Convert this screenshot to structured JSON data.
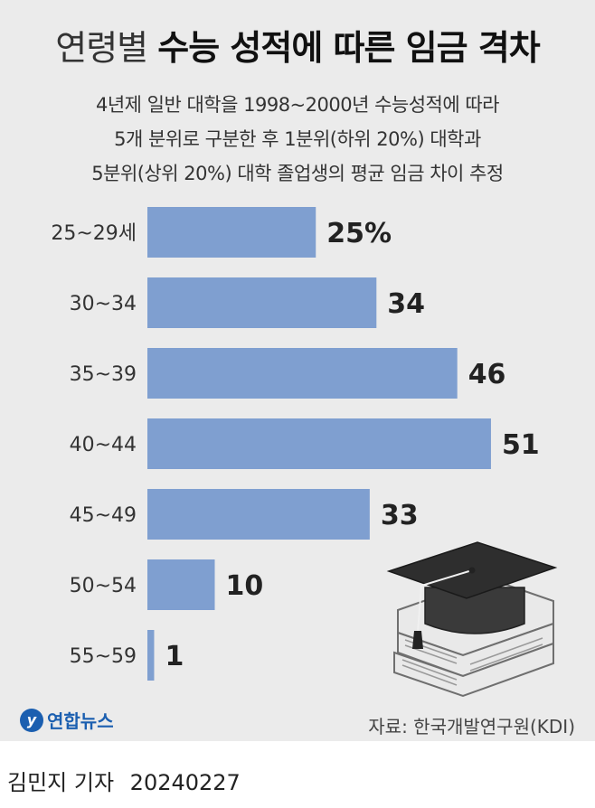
{
  "title": {
    "light": "연령별",
    "bold": "수능 성적에 따른 임금 격차"
  },
  "subtitle": [
    "4년제 일반 대학을 1998~2000년 수능성적에 따라",
    "5개 분위로 구분한 후 1분위(하위 20%) 대학과",
    "5분위(상위 20%) 대학 졸업생의 평균 임금 차이 추정"
  ],
  "chart_data": {
    "type": "bar",
    "orientation": "horizontal",
    "categories": [
      "25~29세",
      "30~34",
      "35~39",
      "40~44",
      "45~49",
      "50~54",
      "55~59"
    ],
    "values": [
      25,
      34,
      46,
      51,
      33,
      10,
      1
    ],
    "value_labels": [
      "25%",
      "34",
      "46",
      "51",
      "33",
      "10",
      "1"
    ],
    "bar_color": "#7f9fd0",
    "grid": false
  },
  "illustration": {
    "icon": "graduation-cap-on-books-icon"
  },
  "logo": {
    "mark": "y",
    "text": "연합뉴스"
  },
  "source": "자료: 한국개발연구원(KDI)",
  "footer": {
    "author": "김민지 기자",
    "date": "20240227"
  }
}
